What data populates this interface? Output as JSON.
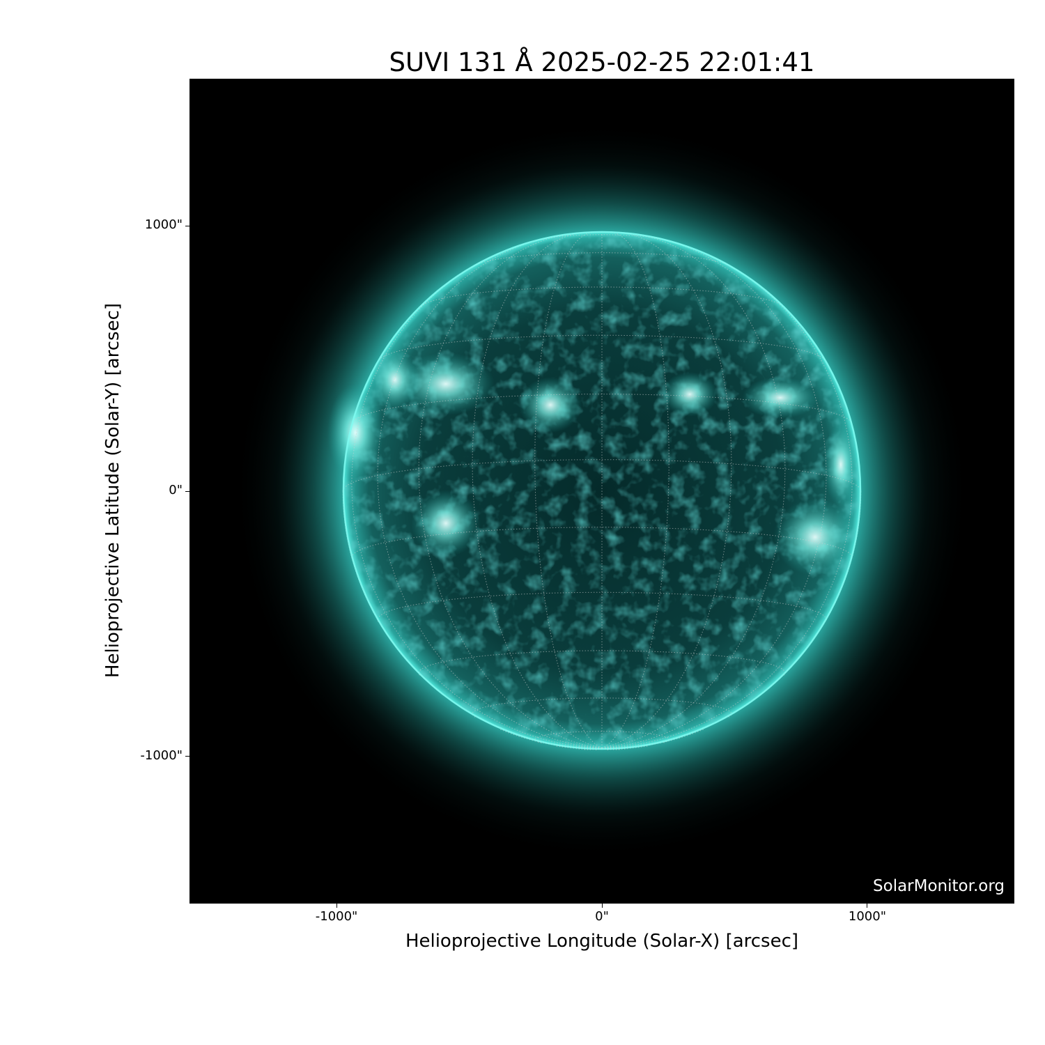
{
  "chart_data": {
    "type": "image",
    "title": "SUVI 131 Å 2025-02-25 22:01:41",
    "xlabel": "Helioprojective Longitude (Solar-X) [arcsec]",
    "ylabel": "Helioprojective Latitude (Solar-Y) [arcsec]",
    "xticks": [
      {
        "value": -1000,
        "label": "-1000\""
      },
      {
        "value": 0,
        "label": "0\""
      },
      {
        "value": 1000,
        "label": "1000\""
      }
    ],
    "yticks": [
      {
        "value": 1000,
        "label": "1000\""
      },
      {
        "value": 0,
        "label": "0\""
      },
      {
        "value": -1000,
        "label": "-1000\""
      }
    ],
    "xlim": [
      -1554,
      1554
    ],
    "ylim": [
      -1554,
      1554
    ],
    "solar_radius_arcsec": 976,
    "heliographic_grid": true,
    "grid_spacing_deg": 15,
    "colormap": "teal (SUVI 131)",
    "colors": {
      "background": "#000000",
      "limb": "#40e8dc",
      "disk": "#0b3f3f",
      "active_region": "#d8fffb",
      "grid": "#cfcfcf"
    },
    "watermark": "SolarMonitor.org"
  }
}
